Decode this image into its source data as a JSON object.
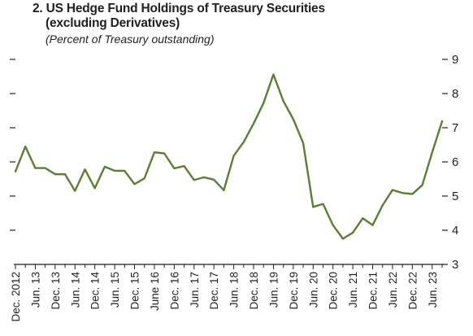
{
  "header": {
    "title_line1": "2. US Hedge Fund Holdings of Treasury Securities",
    "title_line2": "(excluding Derivatives)",
    "subtitle": "(Percent of Treasury outstanding)"
  },
  "chart_data": {
    "type": "line",
    "title": "2. US Hedge Fund Holdings of Treasury Securities (excluding Derivatives)",
    "subtitle": "(Percent of Treasury outstanding)",
    "xlabel": "",
    "ylabel": "",
    "ylim": [
      3,
      9
    ],
    "yticks": [
      3,
      4,
      5,
      6,
      7,
      8,
      9
    ],
    "y_axis_side": "both",
    "grid": false,
    "legend": "none",
    "line_color": "#5a7f34",
    "x_tick_labels": [
      "Dec. 2012",
      "Jun. 13",
      "Dec. 13",
      "Jun. 14",
      "Dec. 14",
      "Jun. 15",
      "Dec. 15",
      "June 16",
      "Dec. 16",
      "Jun. 17",
      "Dec. 17",
      "Jun. 18",
      "Dec. 18",
      "Jun. 19",
      "Dec. 19",
      "Jun. 20",
      "Dec. 20",
      "Jun. 21",
      "Dec. 21",
      "Jun. 22",
      "Dec. 22",
      "Jun. 23"
    ],
    "x": [
      "Dec. 2012",
      "Mar. 13",
      "Jun. 13",
      "Sep. 13",
      "Dec. 13",
      "Mar. 14",
      "Jun. 14",
      "Sep. 14",
      "Dec. 14",
      "Mar. 15",
      "Jun. 15",
      "Sep. 15",
      "Dec. 15",
      "Mar. 16",
      "June 16",
      "Sep. 16",
      "Dec. 16",
      "Mar. 17",
      "Jun. 17",
      "Sep. 17",
      "Dec. 17",
      "Mar. 18",
      "Jun. 18",
      "Sep. 18",
      "Dec. 18",
      "Mar. 19",
      "Jun. 19",
      "Sep. 19",
      "Dec. 19",
      "Mar. 20",
      "Jun. 20",
      "Sep. 20",
      "Dec. 20",
      "Mar. 21",
      "Jun. 21",
      "Sep. 21",
      "Dec. 21",
      "Mar. 22",
      "Jun. 22",
      "Sep. 22",
      "Dec. 22",
      "Mar. 23",
      "Jun. 23",
      "Sep. 23"
    ],
    "series": [
      {
        "values": [
          5.72,
          6.45,
          5.82,
          5.82,
          5.64,
          5.64,
          5.15,
          5.78,
          5.23,
          5.86,
          5.74,
          5.74,
          5.35,
          5.52,
          6.28,
          6.25,
          5.81,
          5.88,
          5.47,
          5.55,
          5.48,
          5.17,
          6.18,
          6.58,
          7.12,
          7.72,
          8.56,
          7.78,
          7.25,
          6.55,
          4.68,
          4.77,
          4.15,
          3.75,
          3.93,
          4.35,
          4.15,
          4.73,
          5.18,
          5.09,
          5.06,
          5.32,
          6.28,
          7.19
        ]
      }
    ]
  }
}
